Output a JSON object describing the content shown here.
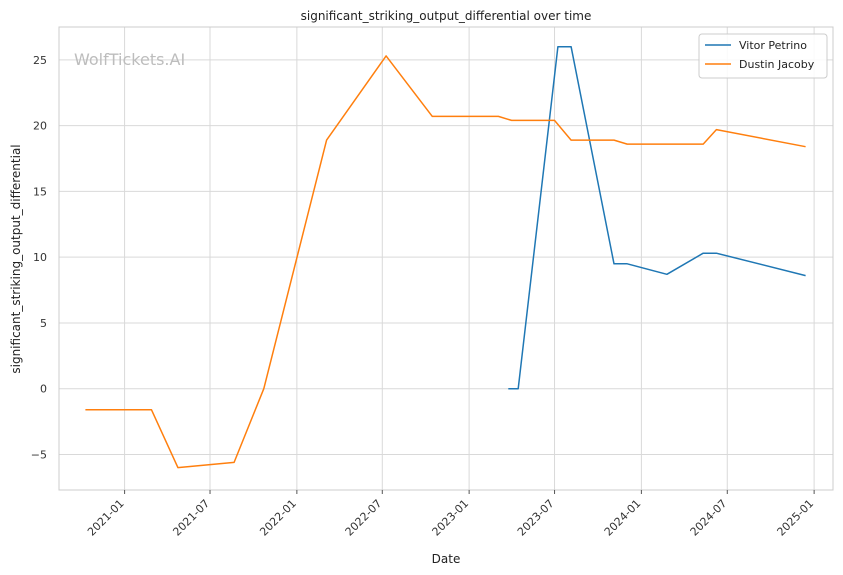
{
  "chart_data": {
    "type": "line",
    "title": "significant_striking_output_differential over time",
    "xlabel": "Date",
    "ylabel": "significant_striking_output_differential",
    "watermark": "WolfTickets.AI",
    "x_ticks": [
      "2021-01",
      "2021-07",
      "2022-01",
      "2022-07",
      "2023-01",
      "2023-07",
      "2024-01",
      "2024-07",
      "2025-01"
    ],
    "y_ticks": [
      -5,
      0,
      5,
      10,
      15,
      20,
      25
    ],
    "xlim": [
      "2020-08-15",
      "2025-02-10"
    ],
    "ylim": [
      -7.7,
      27.5
    ],
    "grid": true,
    "legend_position": "top-right",
    "series": [
      {
        "name": "Vitor Petrino",
        "color": "#1f77b4",
        "points": [
          [
            "2023-03-25",
            0.0
          ],
          [
            "2023-04-15",
            0.0
          ],
          [
            "2023-07-08",
            26.0
          ],
          [
            "2023-08-05",
            26.0
          ],
          [
            "2023-11-04",
            9.5
          ],
          [
            "2023-12-02",
            9.5
          ],
          [
            "2024-02-24",
            8.7
          ],
          [
            "2024-05-11",
            10.3
          ],
          [
            "2024-06-08",
            10.3
          ],
          [
            "2024-12-14",
            8.6
          ]
        ]
      },
      {
        "name": "Dustin Jacoby",
        "color": "#ff7f0e",
        "points": [
          [
            "2020-10-10",
            -1.6
          ],
          [
            "2021-02-27",
            -1.6
          ],
          [
            "2021-04-24",
            -6.0
          ],
          [
            "2021-08-21",
            -5.6
          ],
          [
            "2021-10-23",
            0.0
          ],
          [
            "2022-03-05",
            18.9
          ],
          [
            "2022-07-09",
            25.3
          ],
          [
            "2022-10-15",
            20.7
          ],
          [
            "2023-03-04",
            20.7
          ],
          [
            "2023-04-01",
            20.4
          ],
          [
            "2023-07-01",
            20.4
          ],
          [
            "2023-08-05",
            18.9
          ],
          [
            "2023-11-04",
            18.9
          ],
          [
            "2023-12-02",
            18.6
          ],
          [
            "2024-05-11",
            18.6
          ],
          [
            "2024-06-08",
            19.7
          ],
          [
            "2024-12-14",
            18.4
          ]
        ]
      }
    ]
  }
}
